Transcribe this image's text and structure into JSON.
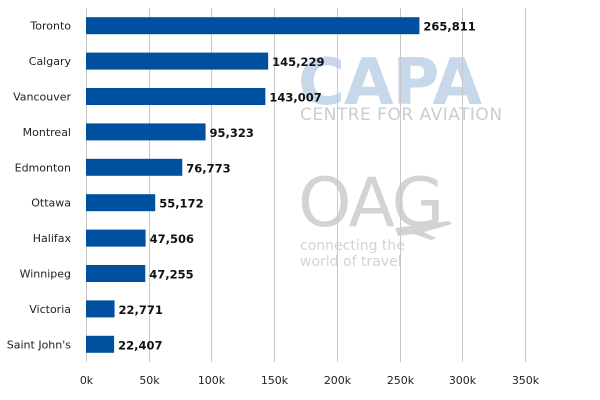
{
  "chart_data": {
    "type": "bar",
    "orientation": "horizontal",
    "categories": [
      "Toronto",
      "Calgary",
      "Vancouver",
      "Montreal",
      "Edmonton",
      "Ottawa",
      "Halifax",
      "Winnipeg",
      "Victoria",
      "Saint John's"
    ],
    "values": [
      265811,
      145229,
      143007,
      95323,
      76773,
      55172,
      47506,
      47255,
      22771,
      22407
    ],
    "value_labels": [
      "265,811",
      "145,229",
      "143,007",
      "95,323",
      "76,773",
      "55,172",
      "47,506",
      "47,255",
      "22,771",
      "22,407"
    ],
    "xlim": [
      0,
      350000
    ],
    "x_ticks": [
      0,
      50000,
      100000,
      150000,
      200000,
      250000,
      300000,
      350000
    ],
    "x_tick_labels": [
      "0k",
      "50k",
      "100k",
      "150k",
      "200k",
      "250k",
      "300k",
      "350k"
    ],
    "grid": "vertical",
    "legend": "none",
    "title": "",
    "xlabel": "",
    "ylabel": "",
    "colors": {
      "bar": "#0050a0",
      "grid": "#c8c8c8",
      "watermark": "#d3d3d3"
    }
  },
  "watermarks": {
    "capa_logo": "CAPA",
    "capa_sub": "CENTRE FOR AVIATION",
    "oag_logo": "OAG",
    "oag_sub_line1": "connecting the",
    "oag_sub_line2": "world of travel"
  }
}
